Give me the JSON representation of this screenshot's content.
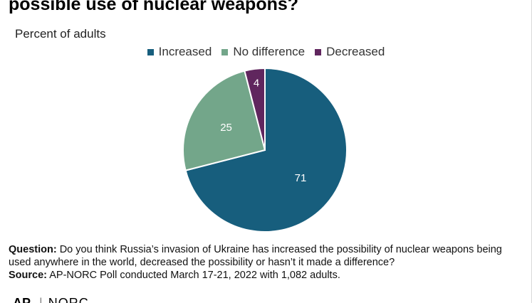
{
  "header": {
    "title": "possible use of nuclear weapons?",
    "subtitle": "Percent of adults"
  },
  "chart_data": {
    "type": "pie",
    "slices": [
      {
        "name": "Increased",
        "value": 71,
        "label": "71",
        "color": "#175e7d"
      },
      {
        "name": "No difference",
        "value": 25,
        "label": "25",
        "color": "#73a68a"
      },
      {
        "name": "Decreased",
        "value": 4,
        "label": "4",
        "color": "#60265e"
      }
    ],
    "legend_position": "top-center"
  },
  "footer": {
    "question_label": "Question:",
    "question_text": " Do you think Russia’s invasion of Ukraine has increased the possibility of nuclear weapons being used anywhere in the world, decreased the possibility or hasn’t it made a difference?",
    "source_label": "Source:",
    "source_text": " AP-NORC Poll conducted March 17-21, 2022 with 1,082 adults."
  },
  "logos": {
    "ap": "AP",
    "separator": "|",
    "norc": "NORC"
  }
}
